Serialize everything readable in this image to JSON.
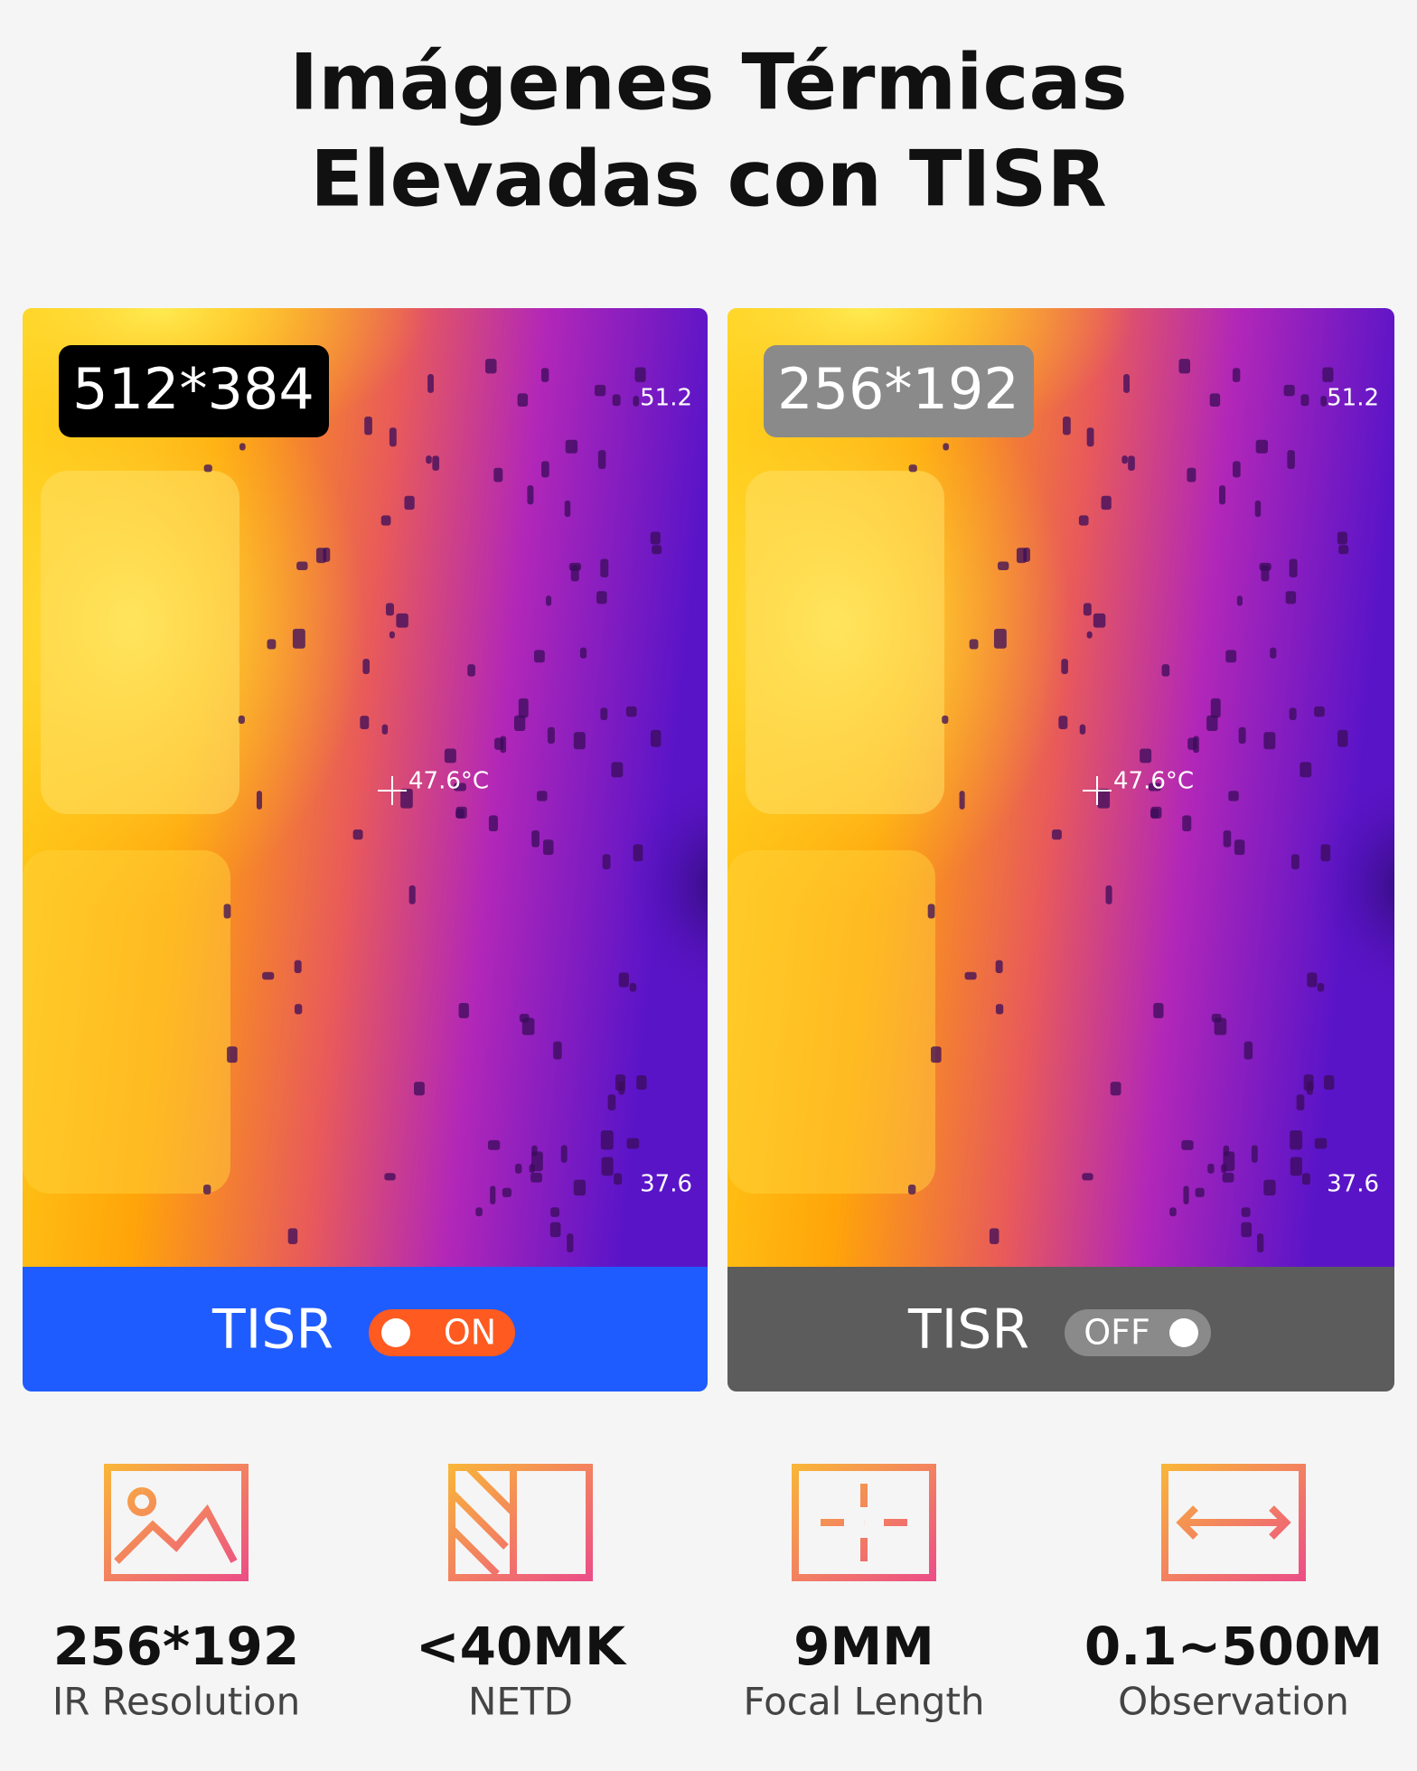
{
  "header": {
    "title": [
      "Imágenes Térmicas",
      "Elevadas con TISR"
    ]
  },
  "panels": [
    {
      "resolution": "512*384",
      "max_temp": "51.2",
      "spot_temp": "47.6°C",
      "min_temp": "37.6",
      "feature": "TISR",
      "toggle": "ON"
    },
    {
      "resolution": "256*192",
      "max_temp": "51.2",
      "spot_temp": "47.6°C",
      "min_temp": "37.6",
      "feature": "TISR",
      "toggle": "OFF"
    }
  ],
  "specs": [
    {
      "value": "256*192",
      "label": "IR Resolution"
    },
    {
      "value": "<40MK",
      "label": "NETD"
    },
    {
      "value": "9MM",
      "label": "Focal Length"
    },
    {
      "value": "0.1~500M",
      "label": "Observation"
    }
  ]
}
